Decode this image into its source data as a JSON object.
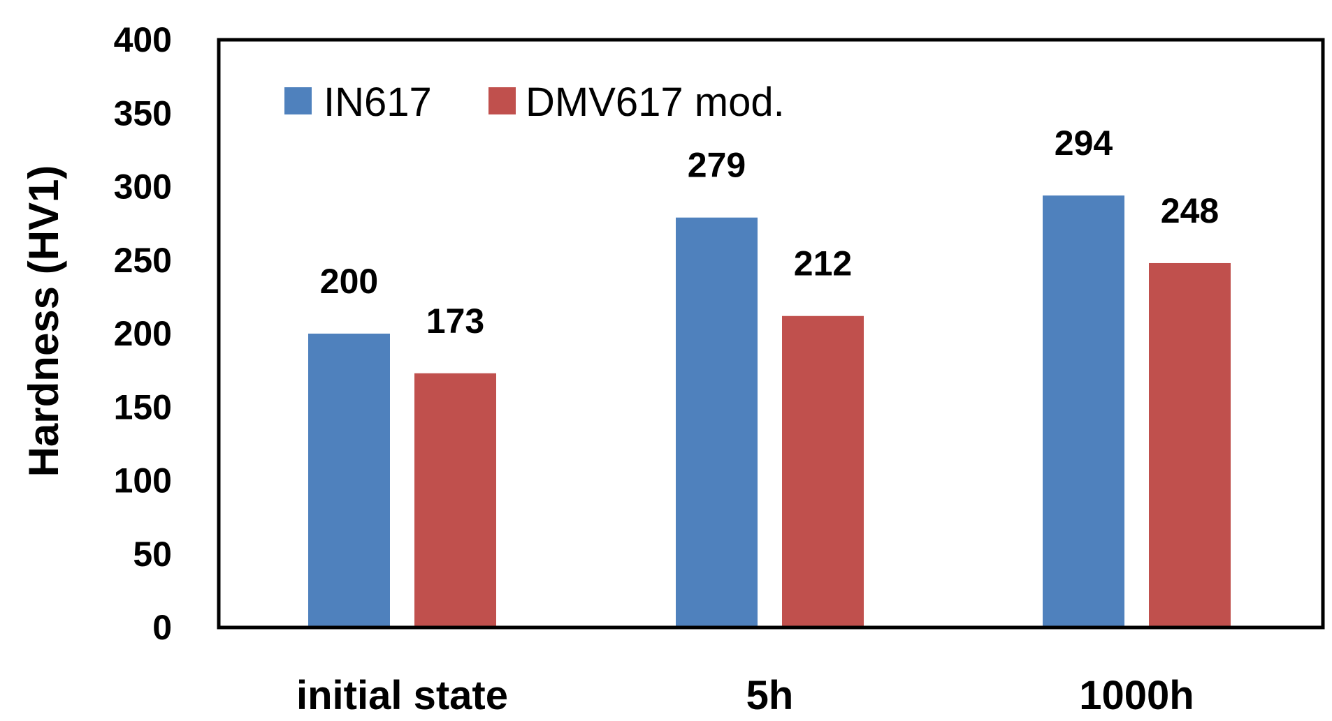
{
  "chart_data": {
    "type": "bar",
    "title": "",
    "xlabel": "",
    "ylabel": "Hardness (HV1)",
    "ylim": [
      0,
      400
    ],
    "yticks": [
      0,
      50,
      100,
      150,
      200,
      250,
      300,
      350,
      400
    ],
    "categories": [
      "initial state",
      "5h",
      "1000h"
    ],
    "series": [
      {
        "name": "IN617",
        "color": "#4f81bd",
        "values": [
          200,
          279,
          294
        ]
      },
      {
        "name": "DMV617 mod.",
        "color": "#c0504d",
        "values": [
          173,
          212,
          248
        ]
      }
    ],
    "data_labels": true,
    "legend_position": "top-left",
    "grid": false
  }
}
